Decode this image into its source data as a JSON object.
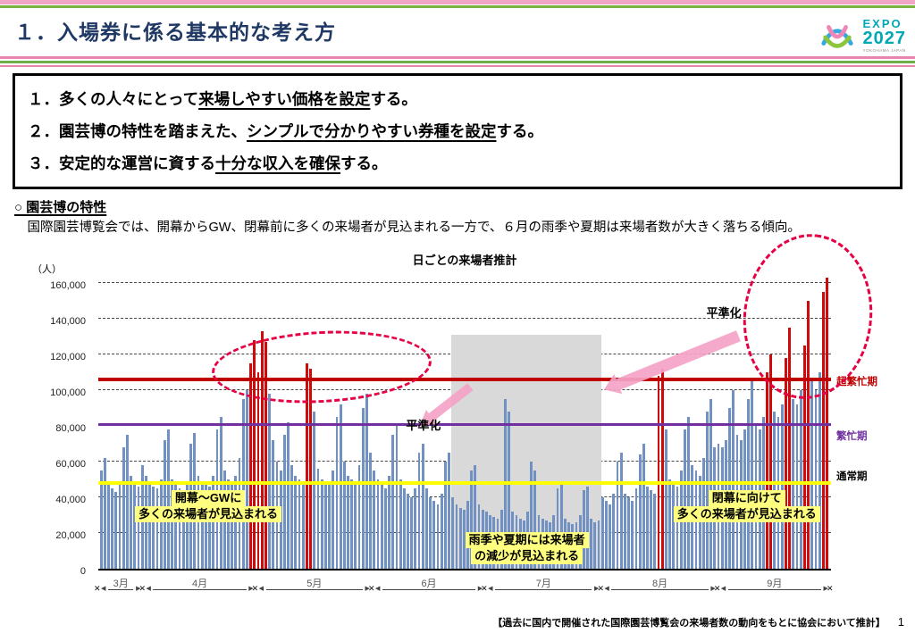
{
  "page": {
    "title": "１．入場券に係る基本的な考え方",
    "page_number": "1",
    "footer_note": "【過去に国内で開催された国際園芸博覧会の来場者数の動向をもとに協会において推計】"
  },
  "logo": {
    "expo": "EXPO",
    "year": "2027",
    "sub": "YOKOHAMA JAPAN"
  },
  "principles": {
    "items": [
      {
        "prefix": "１．多くの人々にとって",
        "underline": "来場しやすい価格を設定",
        "suffix": "する。"
      },
      {
        "prefix": "２．園芸博の特性を踏まえた、",
        "underline": "シンプルで分かりやすい券種を設定",
        "suffix": "する。"
      },
      {
        "prefix": "３．安定的な運営に資する",
        "underline": "十分な収入を確保",
        "suffix": "する。"
      }
    ]
  },
  "section": {
    "heading": "○ 園芸博の特性",
    "body": "　国際園芸博覧会では、開幕からGW、閉幕前に多くの来場者が見込まれる一方で、６月の雨季や夏期は来場者数が大きく落ちる傾向。"
  },
  "chart_data": {
    "type": "bar",
    "title": "日ごとの来場者推計",
    "y_axis_unit": "（人）",
    "ylim": [
      0,
      160000
    ],
    "y_tick_step": 20000,
    "y_tick_labels": [
      "0",
      "20,000",
      "40,000",
      "60,000",
      "80,000",
      "100,000",
      "120,000",
      "140,000",
      "160,000"
    ],
    "values_unit": "thousands of visitors per day (estimated)",
    "grid": "dashed horizontal lines every 20,000",
    "legend_position": "none",
    "bar_color": "#7191c2",
    "peak_bar_color": "#cf0a0a",
    "boundary_mark": "✕",
    "months": [
      {
        "label": "3月",
        "days": 12
      },
      {
        "label": "4月",
        "days": 30
      },
      {
        "label": "5月",
        "days": 31
      },
      {
        "label": "6月",
        "days": 30
      },
      {
        "label": "7月",
        "days": 31
      },
      {
        "label": "8月",
        "days": 31
      },
      {
        "label": "9月",
        "days": 30
      }
    ],
    "values_k": [
      55,
      62,
      48,
      45,
      43,
      47,
      68,
      75,
      52,
      48,
      46,
      58,
      52,
      48,
      46,
      45,
      50,
      72,
      78,
      50,
      47,
      45,
      44,
      49,
      70,
      76,
      52,
      48,
      47,
      46,
      52,
      78,
      85,
      55,
      50,
      48,
      52,
      62,
      95,
      100,
      115,
      128,
      110,
      133,
      127,
      98,
      72,
      60,
      55,
      75,
      82,
      58,
      52,
      50,
      48,
      115,
      112,
      88,
      56,
      50,
      48,
      47,
      55,
      85,
      92,
      60,
      52,
      50,
      48,
      58,
      90,
      98,
      65,
      55,
      50,
      48,
      45,
      52,
      75,
      80,
      50,
      45,
      42,
      40,
      45,
      65,
      70,
      45,
      40,
      38,
      36,
      42,
      60,
      65,
      40,
      36,
      34,
      33,
      38,
      55,
      58,
      36,
      33,
      32,
      30,
      29,
      28,
      33,
      95,
      88,
      32,
      30,
      28,
      27,
      32,
      60,
      55,
      30,
      28,
      27,
      26,
      30,
      45,
      48,
      28,
      26,
      25,
      26,
      30,
      44,
      46,
      28,
      26,
      27,
      40,
      38,
      36,
      42,
      60,
      65,
      42,
      40,
      38,
      45,
      64,
      70,
      46,
      44,
      42,
      108,
      112,
      78,
      50,
      48,
      46,
      55,
      78,
      85,
      58,
      55,
      52,
      62,
      88,
      95,
      68,
      70,
      68,
      72,
      90,
      100,
      75,
      72,
      78,
      95,
      105,
      80,
      78,
      85,
      110,
      120,
      88,
      85,
      92,
      118,
      135,
      95,
      92,
      100,
      125,
      150,
      105,
      100,
      110,
      155,
      163
    ],
    "red_indices": [
      40,
      41,
      42,
      43,
      44,
      55,
      56,
      149,
      150,
      178,
      179,
      183,
      184,
      188,
      189,
      193,
      194
    ],
    "threshold_lines": [
      {
        "name": "super-peak",
        "label": "超繁忙期",
        "value_k": 105,
        "color": "#c00000",
        "label_color": "#c00000"
      },
      {
        "name": "peak",
        "label": "繁忙期",
        "value_k": 80,
        "color": "#7030a0",
        "label_color": "#7030a0"
      },
      {
        "name": "normal",
        "label": "通常期",
        "value_k": 47,
        "color": "#ffff00",
        "label_color": "#000000"
      }
    ],
    "gray_region": {
      "start_index": 94,
      "end_index": 134,
      "meaning": "late June through July (rainy season / summer)",
      "label_lines": [
        "雨季や夏期には来場者",
        "の減少が見込まれる"
      ]
    },
    "annotations": {
      "left_peak_label_lines": [
        "開幕～GWに",
        "多くの来場者が見込まれる"
      ],
      "right_peak_label_lines": [
        "閉幕に向けて",
        "多くの来場者が見込まれる"
      ],
      "leveling_label_left": "平準化",
      "leveling_label_right": "平準化",
      "dashed_ellipse_color": "#e60044",
      "arrow_color": "#f5a3c7"
    }
  }
}
